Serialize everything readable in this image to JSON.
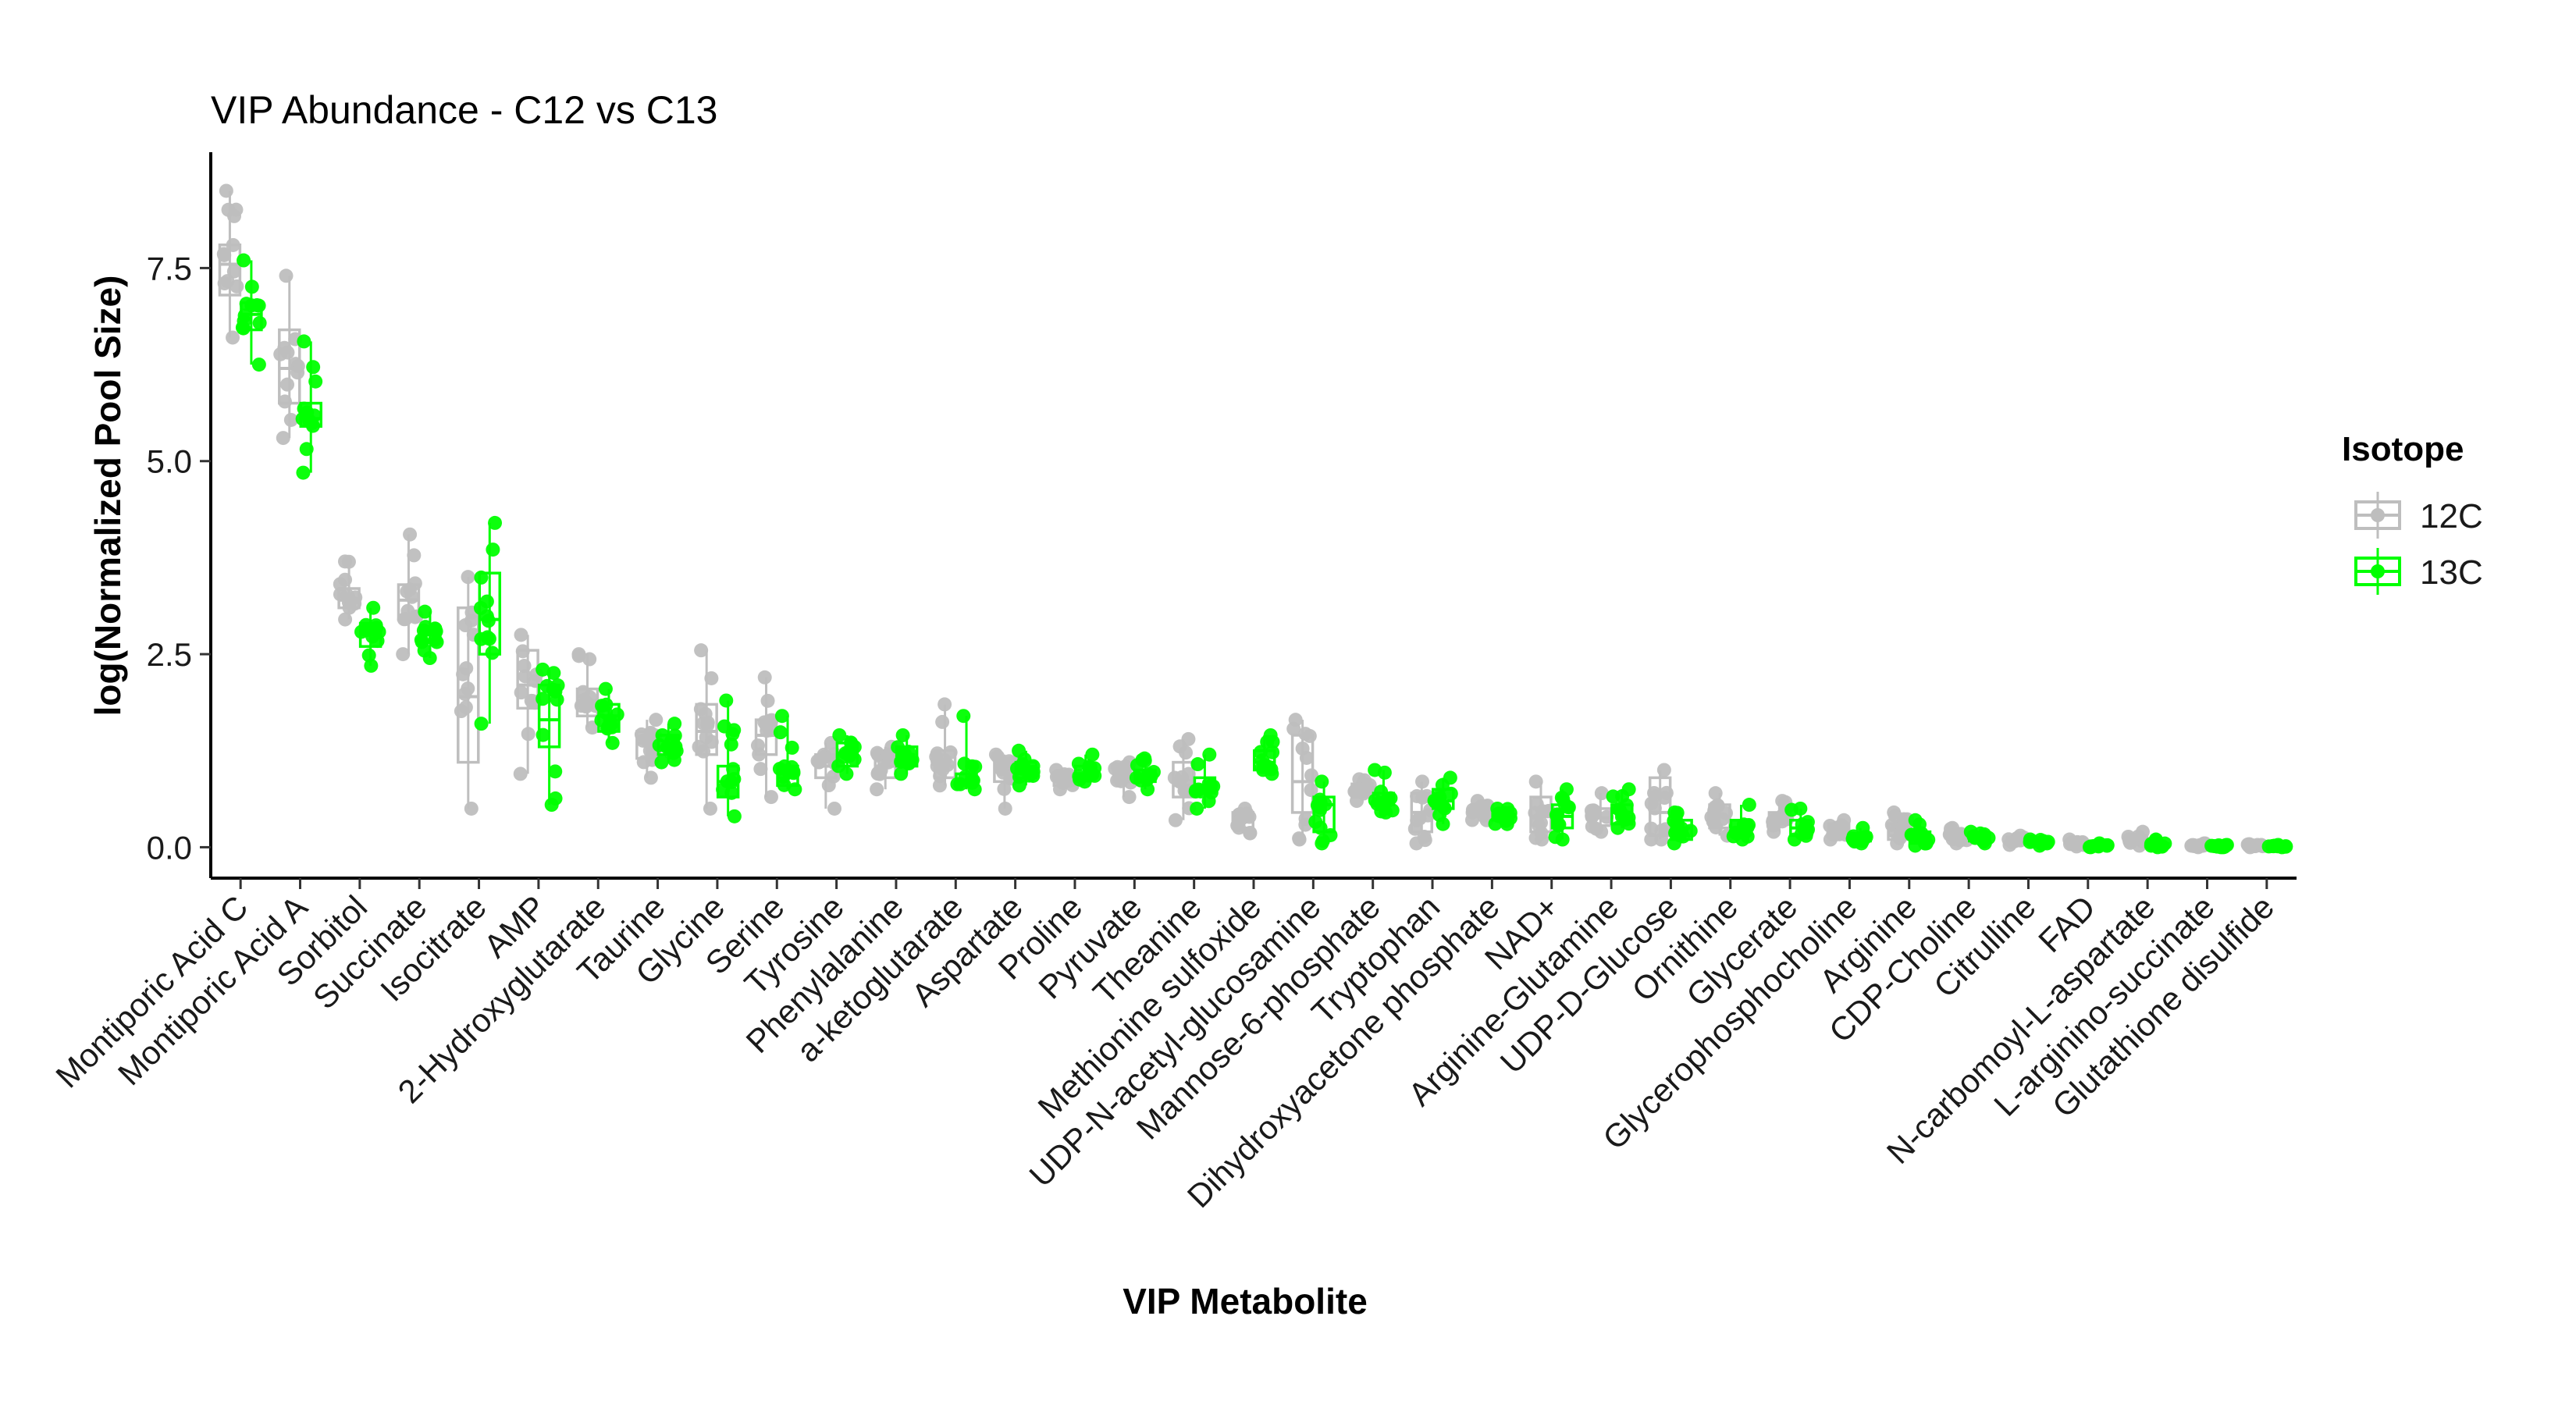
{
  "chart_data": {
    "type": "box",
    "title": "VIP Abundance - C12 vs C13",
    "xlabel": "VIP Metabolite",
    "ylabel": "log(Normalized Pool Size)",
    "ylim": [
      -0.4,
      9.0
    ],
    "yticks": [
      0.0,
      2.5,
      5.0,
      7.5
    ],
    "ytick_labels": [
      "0.0",
      "2.5",
      "5.0",
      "7.5"
    ],
    "grid": false,
    "legend": {
      "title": "Isotope",
      "position": "right"
    },
    "categories": [
      "Montiporic Acid C",
      "Montiporic Acid A",
      "Sorbitol",
      "Succinate",
      "Isocitrate",
      "AMP",
      "2-Hydroxyglutarate",
      "Taurine",
      "Glycine",
      "Serine",
      "Tyrosine",
      "Phenylalanine",
      "a-ketoglutarate",
      "Aspartate",
      "Proline",
      "Pyruvate",
      "Theanine",
      "Methionine sulfoxide",
      "UDP-N-acetyl-glucosamine",
      "Mannose-6-phosphate",
      "Tryptophan",
      "Dihydroxyacetone phosphate",
      "NAD+",
      "Arginine-Glutamine",
      "UDP-D-Glucose",
      "Ornithine",
      "Glycerate",
      "Glycerophosphocholine",
      "Arginine",
      "CDP-Choline",
      "Citrulline",
      "FAD",
      "N-carbomoyl-L-aspartate",
      "L-arginino-succinate",
      "Glutathione disulfide"
    ],
    "series": [
      {
        "name": "12C",
        "color": "#BEBEBE",
        "boxes": [
          {
            "min": 6.6,
            "q1": 7.15,
            "median": 7.55,
            "q3": 7.8,
            "max": 8.5
          },
          {
            "min": 5.3,
            "q1": 5.75,
            "median": 6.2,
            "q3": 6.7,
            "max": 7.4
          },
          {
            "min": 2.95,
            "q1": 3.1,
            "median": 3.2,
            "q3": 3.35,
            "max": 3.7
          },
          {
            "min": 2.5,
            "q1": 2.95,
            "median": 3.2,
            "q3": 3.4,
            "max": 4.05
          },
          {
            "min": 0.5,
            "q1": 1.1,
            "median": 1.95,
            "q3": 3.1,
            "max": 3.5
          },
          {
            "min": 0.95,
            "q1": 1.8,
            "median": 2.1,
            "q3": 2.55,
            "max": 2.75
          },
          {
            "min": 1.55,
            "q1": 1.7,
            "median": 1.9,
            "q3": 2.05,
            "max": 2.5
          },
          {
            "min": 0.9,
            "q1": 1.15,
            "median": 1.35,
            "q3": 1.5,
            "max": 1.65
          },
          {
            "min": 0.5,
            "q1": 1.2,
            "median": 1.5,
            "q3": 1.85,
            "max": 2.55
          },
          {
            "min": 0.65,
            "q1": 1.2,
            "median": 1.45,
            "q3": 1.65,
            "max": 2.2
          },
          {
            "min": 0.5,
            "q1": 0.9,
            "median": 1.05,
            "q3": 1.2,
            "max": 1.35
          },
          {
            "min": 0.75,
            "q1": 0.9,
            "median": 1.05,
            "q3": 1.25,
            "max": 1.3
          },
          {
            "min": 0.8,
            "q1": 0.9,
            "median": 1.05,
            "q3": 1.25,
            "max": 1.85
          },
          {
            "min": 0.5,
            "q1": 0.85,
            "median": 1.0,
            "q3": 1.15,
            "max": 1.2
          },
          {
            "min": 0.75,
            "q1": 0.8,
            "median": 0.85,
            "q3": 0.95,
            "max": 1.0
          },
          {
            "min": 0.65,
            "q1": 0.85,
            "median": 0.92,
            "q3": 1.05,
            "max": 1.1
          },
          {
            "min": 0.35,
            "q1": 0.65,
            "median": 0.8,
            "q3": 1.1,
            "max": 1.4
          },
          {
            "min": 0.18,
            "q1": 0.25,
            "median": 0.35,
            "q3": 0.45,
            "max": 0.5
          },
          {
            "min": 0.1,
            "q1": 0.45,
            "median": 0.85,
            "q3": 1.45,
            "max": 1.65
          },
          {
            "min": 0.6,
            "q1": 0.65,
            "median": 0.72,
            "q3": 0.82,
            "max": 0.88
          },
          {
            "min": 0.05,
            "q1": 0.2,
            "median": 0.45,
            "q3": 0.7,
            "max": 0.85
          },
          {
            "min": 0.35,
            "q1": 0.42,
            "median": 0.5,
            "q3": 0.55,
            "max": 0.6
          },
          {
            "min": 0.1,
            "q1": 0.2,
            "median": 0.4,
            "q3": 0.65,
            "max": 0.85
          },
          {
            "min": 0.2,
            "q1": 0.28,
            "median": 0.38,
            "q3": 0.5,
            "max": 0.7
          },
          {
            "min": 0.1,
            "q1": 0.15,
            "median": 0.45,
            "q3": 0.9,
            "max": 1.0
          },
          {
            "min": 0.15,
            "q1": 0.25,
            "median": 0.4,
            "q3": 0.55,
            "max": 0.7
          },
          {
            "min": 0.2,
            "q1": 0.3,
            "median": 0.35,
            "q3": 0.45,
            "max": 0.6
          },
          {
            "min": 0.1,
            "q1": 0.15,
            "median": 0.2,
            "q3": 0.3,
            "max": 0.35
          },
          {
            "min": 0.05,
            "q1": 0.1,
            "median": 0.15,
            "q3": 0.3,
            "max": 0.45
          },
          {
            "min": 0.05,
            "q1": 0.1,
            "median": 0.15,
            "q3": 0.2,
            "max": 0.25
          },
          {
            "min": 0.03,
            "q1": 0.06,
            "median": 0.1,
            "q3": 0.13,
            "max": 0.15
          },
          {
            "min": 0.01,
            "q1": 0.03,
            "median": 0.05,
            "q3": 0.07,
            "max": 0.1
          },
          {
            "min": 0.02,
            "q1": 0.05,
            "median": 0.08,
            "q3": 0.15,
            "max": 0.2
          },
          {
            "min": 0.0,
            "q1": 0.01,
            "median": 0.02,
            "q3": 0.03,
            "max": 0.05
          },
          {
            "min": 0.0,
            "q1": 0.01,
            "median": 0.02,
            "q3": 0.03,
            "max": 0.04
          }
        ]
      },
      {
        "name": "13C",
        "color": "#00FF00",
        "boxes": [
          {
            "min": 6.25,
            "q1": 6.7,
            "median": 6.9,
            "q3": 7.05,
            "max": 7.6
          },
          {
            "min": 4.85,
            "q1": 5.45,
            "median": 5.55,
            "q3": 5.75,
            "max": 6.55
          },
          {
            "min": 2.35,
            "q1": 2.6,
            "median": 2.75,
            "q3": 2.9,
            "max": 3.1
          },
          {
            "min": 2.45,
            "q1": 2.65,
            "median": 2.75,
            "q3": 2.85,
            "max": 3.05
          },
          {
            "min": 1.6,
            "q1": 2.5,
            "median": 2.95,
            "q3": 3.55,
            "max": 4.2
          },
          {
            "min": 0.55,
            "q1": 1.3,
            "median": 1.65,
            "q3": 2.1,
            "max": 2.3
          },
          {
            "min": 1.35,
            "q1": 1.5,
            "median": 1.7,
            "q3": 1.85,
            "max": 2.05
          },
          {
            "min": 1.1,
            "q1": 1.2,
            "median": 1.3,
            "q3": 1.45,
            "max": 1.6
          },
          {
            "min": 0.4,
            "q1": 0.65,
            "median": 0.85,
            "q3": 1.05,
            "max": 1.9
          },
          {
            "min": 0.75,
            "q1": 0.8,
            "median": 0.9,
            "q3": 1.05,
            "max": 1.7
          },
          {
            "min": 0.95,
            "q1": 1.05,
            "median": 1.2,
            "q3": 1.35,
            "max": 1.45
          },
          {
            "min": 0.95,
            "q1": 1.05,
            "median": 1.15,
            "q3": 1.3,
            "max": 1.45
          },
          {
            "min": 0.75,
            "q1": 0.8,
            "median": 0.85,
            "q3": 0.95,
            "max": 1.7
          },
          {
            "min": 0.8,
            "q1": 0.9,
            "median": 1.0,
            "q3": 1.1,
            "max": 1.25
          },
          {
            "min": 0.85,
            "q1": 0.9,
            "median": 0.95,
            "q3": 1.05,
            "max": 1.2
          },
          {
            "min": 0.75,
            "q1": 0.85,
            "median": 0.92,
            "q3": 1.0,
            "max": 1.15
          },
          {
            "min": 0.5,
            "q1": 0.7,
            "median": 0.8,
            "q3": 0.9,
            "max": 1.2
          },
          {
            "min": 0.95,
            "q1": 1.0,
            "median": 1.1,
            "q3": 1.25,
            "max": 1.45
          },
          {
            "min": 0.05,
            "q1": 0.2,
            "median": 0.55,
            "q3": 0.65,
            "max": 0.85
          },
          {
            "min": 0.45,
            "q1": 0.55,
            "median": 0.6,
            "q3": 0.7,
            "max": 1.0
          },
          {
            "min": 0.3,
            "q1": 0.5,
            "median": 0.6,
            "q3": 0.75,
            "max": 0.9
          },
          {
            "min": 0.3,
            "q1": 0.35,
            "median": 0.4,
            "q3": 0.45,
            "max": 0.5
          },
          {
            "min": 0.1,
            "q1": 0.25,
            "median": 0.4,
            "q3": 0.55,
            "max": 0.75
          },
          {
            "min": 0.25,
            "q1": 0.3,
            "median": 0.45,
            "q3": 0.55,
            "max": 0.75
          },
          {
            "min": 0.05,
            "q1": 0.1,
            "median": 0.25,
            "q3": 0.35,
            "max": 0.45
          },
          {
            "min": 0.1,
            "q1": 0.18,
            "median": 0.25,
            "q3": 0.35,
            "max": 0.55
          },
          {
            "min": 0.1,
            "q1": 0.15,
            "median": 0.25,
            "q3": 0.35,
            "max": 0.5
          },
          {
            "min": 0.05,
            "q1": 0.08,
            "median": 0.12,
            "q3": 0.18,
            "max": 0.25
          },
          {
            "min": 0.02,
            "q1": 0.05,
            "median": 0.1,
            "q3": 0.2,
            "max": 0.35
          },
          {
            "min": 0.05,
            "q1": 0.08,
            "median": 0.12,
            "q3": 0.16,
            "max": 0.2
          },
          {
            "min": 0.02,
            "q1": 0.04,
            "median": 0.06,
            "q3": 0.08,
            "max": 0.1
          },
          {
            "min": 0.0,
            "q1": 0.01,
            "median": 0.02,
            "q3": 0.03,
            "max": 0.05
          },
          {
            "min": 0.0,
            "q1": 0.01,
            "median": 0.03,
            "q3": 0.05,
            "max": 0.1
          },
          {
            "min": 0.0,
            "q1": 0.005,
            "median": 0.01,
            "q3": 0.02,
            "max": 0.03
          },
          {
            "min": 0.0,
            "q1": 0.005,
            "median": 0.01,
            "q3": 0.02,
            "max": 0.03
          }
        ]
      }
    ]
  }
}
